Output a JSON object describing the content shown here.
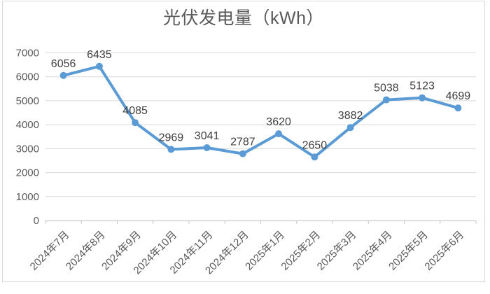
{
  "chart": {
    "title": "光伏发电量（kWh）"
  },
  "chart_data": {
    "type": "line",
    "title": "光伏发电量（kWh）",
    "categories": [
      "2024年7月",
      "2024年8月",
      "2024年9月",
      "2024年10月",
      "2024年11月",
      "2024年12月",
      "2025年1月",
      "2025年2月",
      "2025年3月",
      "2025年4月",
      "2025年5月",
      "2025年6月"
    ],
    "values": [
      6056,
      6435,
      4085,
      2969,
      3041,
      2787,
      3620,
      2650,
      3882,
      5038,
      5123,
      4699
    ],
    "ylim": [
      0,
      7000
    ],
    "yticks": [
      0,
      1000,
      2000,
      3000,
      4000,
      5000,
      6000,
      7000
    ],
    "xlabel": "",
    "ylabel": "",
    "grid": "horizontal",
    "legend": "none",
    "data_labels": true,
    "x_label_rotation_deg": 45,
    "colors": {
      "line": "#5B9BD5",
      "marker": "#5B9BD5",
      "gridline": "#D9D9D9",
      "axis_line": "#BFBFBF",
      "axis_label": "#595959",
      "data_label": "#404040",
      "title": "#595959",
      "frame_border": "#D9D9D9",
      "background": "#FFFFFF"
    }
  }
}
